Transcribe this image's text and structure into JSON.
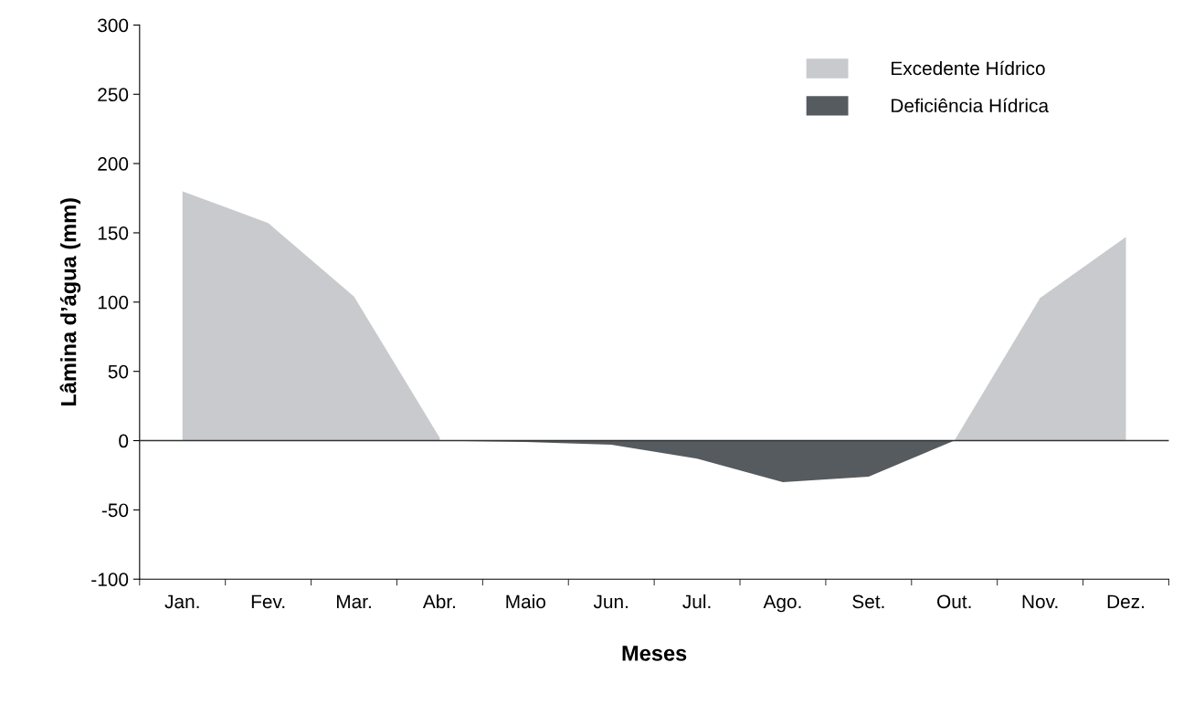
{
  "chart_data": {
    "type": "area",
    "xlabel": "Meses",
    "ylabel": "Lâmina d’água (mm)",
    "categories": [
      "Jan.",
      "Fev.",
      "Mar.",
      "Abr.",
      "Maio",
      "Jun.",
      "Jul.",
      "Ago.",
      "Set.",
      "Out.",
      "Nov.",
      "Dez."
    ],
    "series": [
      {
        "name": "Excedente Hídrico",
        "color": "#c8cacd",
        "values": [
          180,
          157,
          104,
          2,
          null,
          null,
          null,
          null,
          null,
          0,
          103,
          147
        ]
      },
      {
        "name": "Deficiência Hídrica",
        "color": "#555b5f",
        "values": [
          null,
          null,
          null,
          0,
          -1,
          -3,
          -13,
          -30,
          -26,
          0,
          null,
          null
        ]
      }
    ],
    "ylim": [
      -100,
      300
    ],
    "yticks": [
      -100,
      -50,
      0,
      50,
      100,
      150,
      200,
      250,
      300
    ],
    "ref_lines": [
      {
        "axis": "y",
        "value": 0,
        "color": "#333333"
      }
    ],
    "grid": false,
    "legend": "top right"
  }
}
